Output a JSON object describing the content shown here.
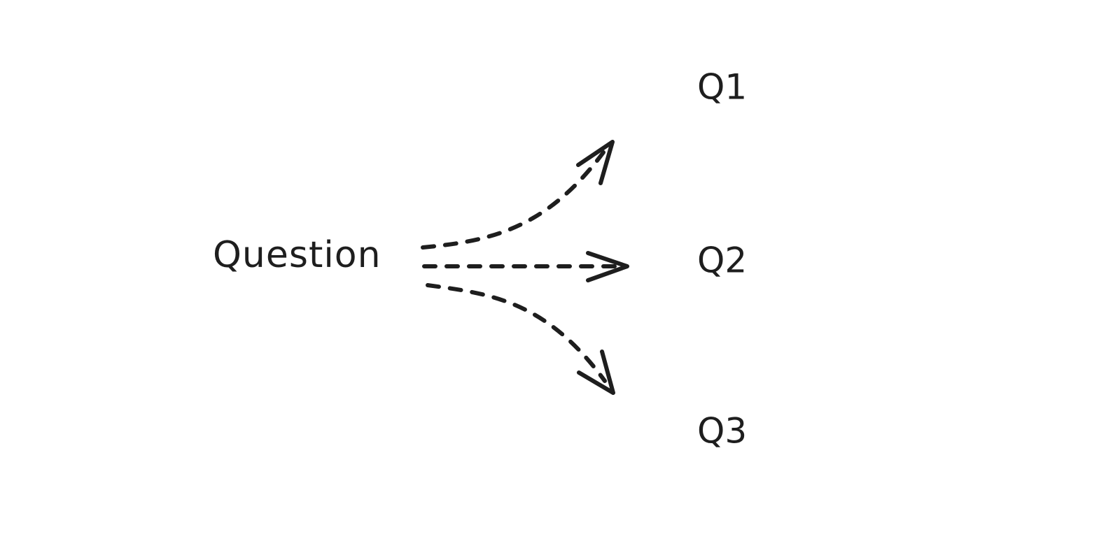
{
  "diagram": {
    "source": {
      "label": "Question"
    },
    "targets": [
      {
        "label": "Q1"
      },
      {
        "label": "Q2"
      },
      {
        "label": "Q3"
      }
    ],
    "edges": [
      {
        "from": "Question",
        "to": "Q1",
        "style": "dashed"
      },
      {
        "from": "Question",
        "to": "Q2",
        "style": "dashed"
      },
      {
        "from": "Question",
        "to": "Q3",
        "style": "dashed"
      }
    ],
    "colors": {
      "background": "#ffffff",
      "ink": "#1e1e1e"
    }
  }
}
